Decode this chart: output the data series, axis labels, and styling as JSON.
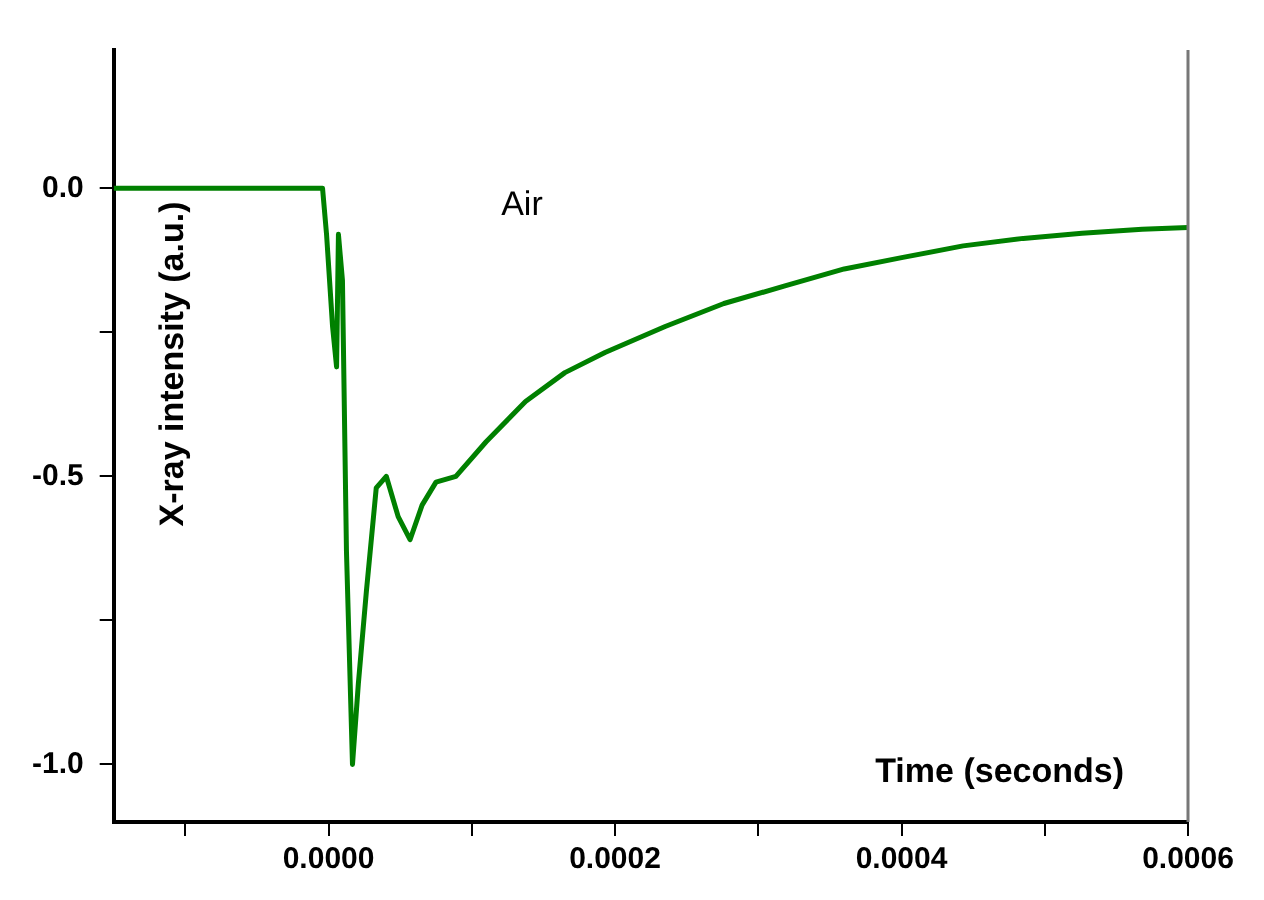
{
  "chart_data": {
    "type": "line",
    "xlabel": "Time (seconds)",
    "ylabel": "X-ray intensity (a.u.)",
    "annotations": [
      "Air"
    ],
    "x": [
      -0.00015,
      -0.0001,
      -5e-05,
      -1e-05,
      -4.2e-06,
      -1.4e-06,
      2.8e-06,
      5.6e-06,
      6.9e-06,
      9.7e-06,
      1.25e-05,
      1.67e-05,
      2.08e-05,
      2.64e-05,
      3.33e-05,
      4.03e-05,
      4.86e-05,
      5.69e-05,
      6.53e-05,
      7.5e-05,
      8.89e-05,
      0.00011,
      0.0001375,
      0.000165,
      0.000193,
      0.000235,
      0.000276,
      0.000318,
      0.00036,
      0.000401,
      0.000443,
      0.000485,
      0.000526,
      0.000568,
      0.0006
    ],
    "series": [
      {
        "color": "#008000",
        "values": [
          0.0,
          0.0,
          0.0,
          0.0,
          0.0,
          -0.08,
          -0.24,
          -0.31,
          -0.08,
          -0.16,
          -0.63,
          -1.0,
          -0.86,
          -0.7,
          -0.52,
          -0.5,
          -0.57,
          -0.61,
          -0.55,
          -0.51,
          -0.5,
          -0.44,
          -0.37,
          -0.32,
          -0.285,
          -0.24,
          -0.2,
          -0.17,
          -0.14,
          -0.12,
          -0.1,
          -0.087,
          -0.078,
          -0.071,
          -0.068
        ]
      }
    ],
    "xlim": [
      -0.00015,
      0.0006
    ],
    "xticks": [
      {
        "value": -0.0001,
        "label": null
      },
      {
        "value": 0,
        "label": "0.0000"
      },
      {
        "value": 0.0001,
        "label": null
      },
      {
        "value": 0.0002,
        "label": "0.0002"
      },
      {
        "value": 0.0003,
        "label": null
      },
      {
        "value": 0.0004,
        "label": "0.0004"
      },
      {
        "value": 0.0005,
        "label": null
      },
      {
        "value": 0.0006,
        "label": "0.0006"
      }
    ],
    "ylim": [
      -1.1,
      0.24
    ],
    "yticks": [
      {
        "value": -1,
        "label": "-1.0"
      },
      {
        "value": -0.75,
        "label": null
      },
      {
        "value": -0.5,
        "label": "-0.5"
      },
      {
        "value": -0.25,
        "label": null
      },
      {
        "value": 0,
        "label": "0.0"
      }
    ],
    "grid": false,
    "legend": false,
    "marker": "none",
    "line_style": "solid"
  }
}
